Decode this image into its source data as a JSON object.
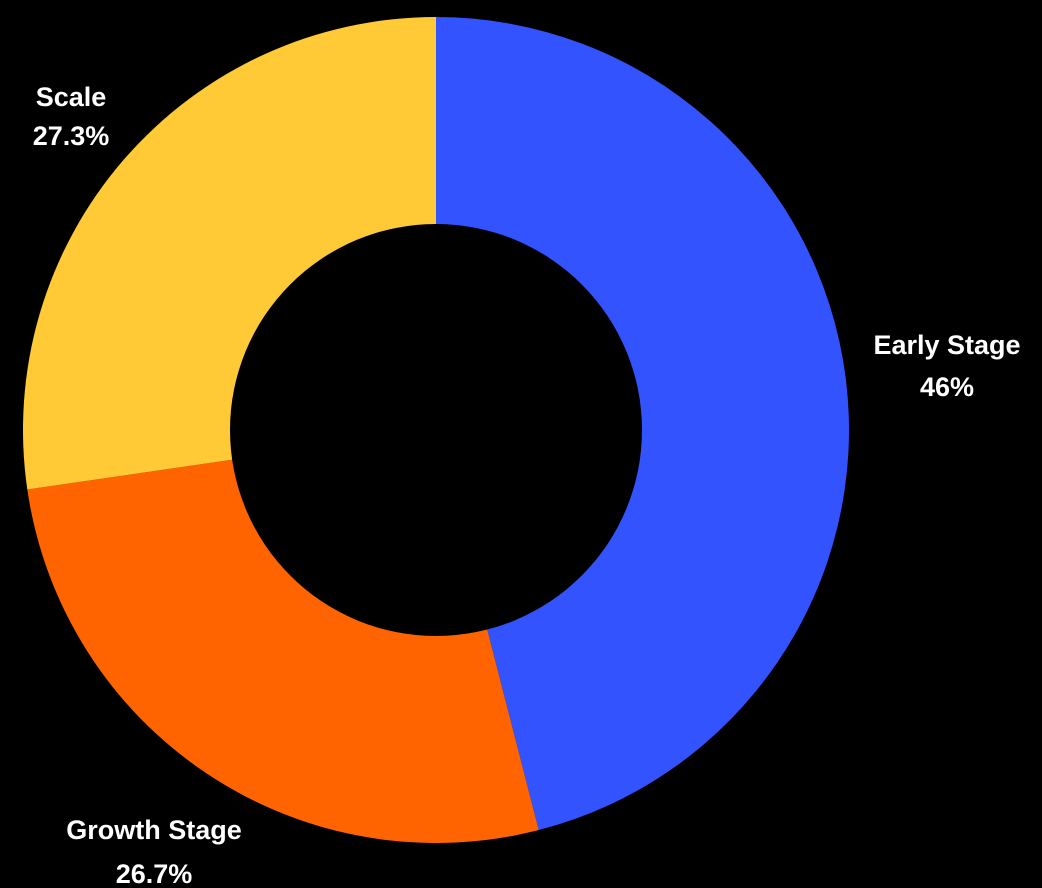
{
  "chart_data": {
    "type": "pie",
    "variant": "donut",
    "background": "#000000",
    "label_color": "#ffffff",
    "slices": [
      {
        "label": "Early Stage",
        "value": 46,
        "value_label": "46%",
        "color": "#3353FF"
      },
      {
        "label": "Growth Stage",
        "value": 26.7,
        "value_label": "26.7%",
        "color": "#FF6400"
      },
      {
        "label": "Scale",
        "value": 27.3,
        "value_label": "27.3%",
        "color": "#FFCA35"
      }
    ]
  }
}
